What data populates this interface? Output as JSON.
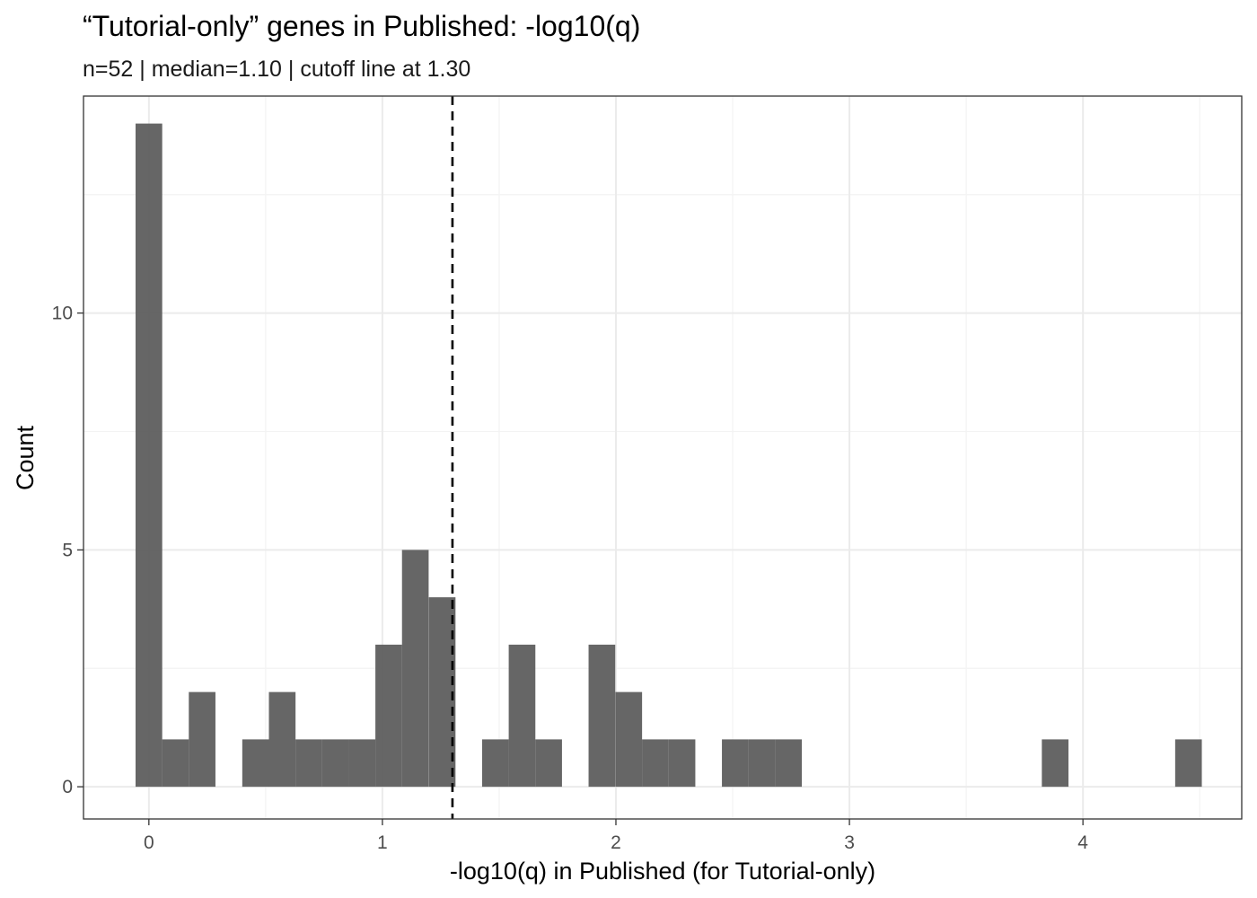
{
  "chart_data": {
    "type": "bar",
    "title": "“Tutorial-only” genes in Published: -log10(q)",
    "subtitle": "n=52 | median=1.10 | cutoff line at 1.30",
    "xlabel": "-log10(q) in Published (for Tutorial-only)",
    "ylabel": "Count",
    "xlim": [
      -0.28,
      4.68
    ],
    "ylim": [
      -0.68,
      14.58
    ],
    "x_ticks": [
      0,
      1,
      2,
      3,
      4
    ],
    "x_tick_labels": [
      "0",
      "1",
      "2",
      "3",
      "4"
    ],
    "y_ticks": [
      0,
      5,
      10
    ],
    "y_tick_labels": [
      "0",
      "5",
      "10"
    ],
    "x_minor_ticks": [
      0.5,
      1.5,
      2.5,
      3.5,
      4.5
    ],
    "y_minor_ticks": [
      2.5,
      7.5,
      12.5
    ],
    "bin_width": 0.1141,
    "bins": [
      {
        "x": 0.0,
        "count": 14
      },
      {
        "x": 0.114,
        "count": 1
      },
      {
        "x": 0.228,
        "count": 2
      },
      {
        "x": 0.342,
        "count": 0
      },
      {
        "x": 0.457,
        "count": 1
      },
      {
        "x": 0.571,
        "count": 2
      },
      {
        "x": 0.685,
        "count": 1
      },
      {
        "x": 0.799,
        "count": 1
      },
      {
        "x": 0.913,
        "count": 1
      },
      {
        "x": 1.027,
        "count": 3
      },
      {
        "x": 1.141,
        "count": 5
      },
      {
        "x": 1.256,
        "count": 4
      },
      {
        "x": 1.37,
        "count": 0
      },
      {
        "x": 1.484,
        "count": 1
      },
      {
        "x": 1.598,
        "count": 3
      },
      {
        "x": 1.712,
        "count": 1
      },
      {
        "x": 1.826,
        "count": 0
      },
      {
        "x": 1.94,
        "count": 3
      },
      {
        "x": 2.055,
        "count": 2
      },
      {
        "x": 2.169,
        "count": 1
      },
      {
        "x": 2.283,
        "count": 1
      },
      {
        "x": 2.397,
        "count": 0
      },
      {
        "x": 2.511,
        "count": 1
      },
      {
        "x": 2.625,
        "count": 1
      },
      {
        "x": 2.739,
        "count": 1
      },
      {
        "x": 2.854,
        "count": 0
      },
      {
        "x": 2.968,
        "count": 0
      },
      {
        "x": 3.082,
        "count": 0
      },
      {
        "x": 3.196,
        "count": 0
      },
      {
        "x": 3.31,
        "count": 0
      },
      {
        "x": 3.424,
        "count": 0
      },
      {
        "x": 3.538,
        "count": 0
      },
      {
        "x": 3.653,
        "count": 0
      },
      {
        "x": 3.767,
        "count": 0
      },
      {
        "x": 3.881,
        "count": 1
      },
      {
        "x": 3.995,
        "count": 0
      },
      {
        "x": 4.109,
        "count": 0
      },
      {
        "x": 4.223,
        "count": 0
      },
      {
        "x": 4.337,
        "count": 0
      },
      {
        "x": 4.452,
        "count": 1
      }
    ],
    "cutoff": 1.3,
    "cutoff_style": "dashed",
    "grid": true,
    "legend": "none",
    "bar_color": "#595959",
    "bar_opacity": 0.92,
    "panel_border_color": "#333333",
    "grid_major_color": "#ebebeb",
    "grid_minor_color": "#f3f3f3"
  }
}
